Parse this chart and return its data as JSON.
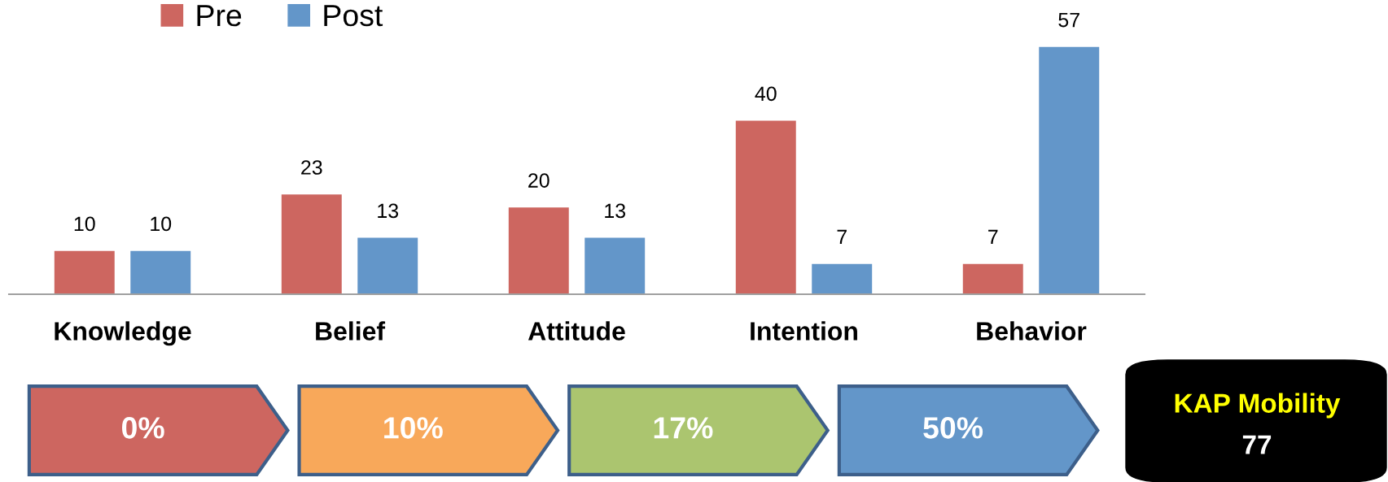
{
  "chart_data": {
    "type": "bar",
    "categories": [
      "Knowledge",
      "Belief",
      "Attitude",
      "Intention",
      "Behavior"
    ],
    "series": [
      {
        "name": "Pre",
        "color": "#cd6660",
        "values": [
          10,
          23,
          20,
          40,
          7
        ]
      },
      {
        "name": "Post",
        "color": "#6396c9",
        "values": [
          10,
          13,
          13,
          7,
          57
        ]
      }
    ],
    "data_labels": true,
    "legend": "top left",
    "grid": false,
    "annotations": [
      "0%",
      "10%",
      "17%",
      "50%",
      "KAP Mobility",
      "77"
    ]
  }
}
